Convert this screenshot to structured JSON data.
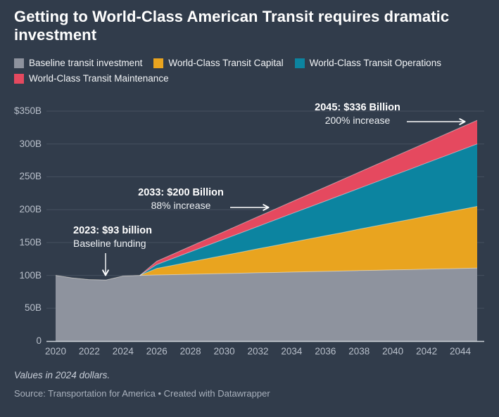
{
  "title": "Getting to World-Class American Transit requires dramatic investment",
  "legend": [
    {
      "label": "Baseline transit investment",
      "color": "#8e939e"
    },
    {
      "label": "World-Class Transit Capital",
      "color": "#e9a41f"
    },
    {
      "label": "World-Class Transit Operations",
      "color": "#0c84a0"
    },
    {
      "label": "World-Class Transit Maintenance",
      "color": "#e5495f"
    }
  ],
  "chart_data": {
    "type": "area",
    "stacked": true,
    "title": "Getting to World-Class American Transit requires dramatic investment",
    "x": [
      2020,
      2021,
      2022,
      2023,
      2024,
      2025,
      2026,
      2027,
      2028,
      2029,
      2030,
      2031,
      2032,
      2033,
      2034,
      2035,
      2036,
      2037,
      2038,
      2039,
      2040,
      2041,
      2042,
      2043,
      2044,
      2045
    ],
    "series": [
      {
        "name": "Baseline transit investment",
        "color": "#8e939e",
        "values": [
          100,
          96,
          93.5,
          93,
          99,
          100,
          100.6,
          101.1,
          101.7,
          102.2,
          102.8,
          103.3,
          103.9,
          104.4,
          105,
          105.5,
          106.1,
          106.6,
          107.2,
          107.7,
          108.3,
          108.8,
          109.4,
          109.9,
          110.5,
          111
        ]
      },
      {
        "name": "World-Class Transit Capital",
        "color": "#e9a41f",
        "values": [
          0,
          0,
          0,
          0,
          0,
          0,
          10,
          14.4,
          18.8,
          23.3,
          27.7,
          32.1,
          36.5,
          41,
          45.4,
          49.8,
          54.2,
          58.6,
          63.1,
          67.5,
          71.9,
          76.3,
          80.8,
          85.2,
          89.6,
          94
        ]
      },
      {
        "name": "World-Class Transit Operations",
        "color": "#0c84a0",
        "values": [
          0,
          0,
          0,
          0,
          0,
          0,
          6,
          10.7,
          15.4,
          20.1,
          24.7,
          29.4,
          34.1,
          38.8,
          43.5,
          48.2,
          52.8,
          57.5,
          62.2,
          66.9,
          71.6,
          76.3,
          80.9,
          85.6,
          90.3,
          95
        ]
      },
      {
        "name": "World-Class Transit Maintenance",
        "color": "#e5495f",
        "values": [
          0,
          0,
          0,
          0,
          0,
          0,
          5,
          6.6,
          8.3,
          9.9,
          11.5,
          13.2,
          14.8,
          16.4,
          18.1,
          19.7,
          21.3,
          23,
          24.6,
          26.2,
          27.9,
          29.5,
          31.1,
          32.8,
          34.4,
          36
        ]
      }
    ],
    "ylim": [
      0,
      350
    ],
    "grid": "horizontal",
    "y_ticks": [
      {
        "value": 350,
        "label": "$350B"
      },
      {
        "value": 300,
        "label": "300B"
      },
      {
        "value": 250,
        "label": "250B"
      },
      {
        "value": 200,
        "label": "200B"
      },
      {
        "value": 150,
        "label": "150B"
      },
      {
        "value": 100,
        "label": "100B"
      },
      {
        "value": 50,
        "label": "50B"
      },
      {
        "value": 0,
        "label": "0"
      }
    ],
    "x_tick_labels": [
      "2020",
      "2022",
      "2024",
      "2026",
      "2028",
      "2030",
      "2032",
      "2034",
      "2036",
      "2038",
      "2040",
      "2042",
      "2044"
    ],
    "annotations": [
      {
        "id": "2045",
        "line1": "2045: $336 Billion",
        "line2": "200% increase",
        "arrow": "right",
        "target_year": 2045,
        "target_value": 336
      },
      {
        "id": "2033",
        "line1": "2033: $200 Billion",
        "line2": "88% increase",
        "arrow": "right",
        "target_year": 2033,
        "target_value": 200
      },
      {
        "id": "2023",
        "line1": "2023: $93 billion",
        "line2": "Baseline funding",
        "arrow": "down",
        "target_year": 2023,
        "target_value": 93
      }
    ],
    "legend_position": "top"
  },
  "footer": {
    "note": "Values in 2024 dollars.",
    "source": "Source: Transportation for America • Created with Datawrapper"
  },
  "colors": {
    "background": "#313c4b",
    "gridline": "#46505f",
    "axis_line": "#ccd1d8",
    "tick_text": "#b9c0cb",
    "annotation_arrow": "#ffffff"
  }
}
